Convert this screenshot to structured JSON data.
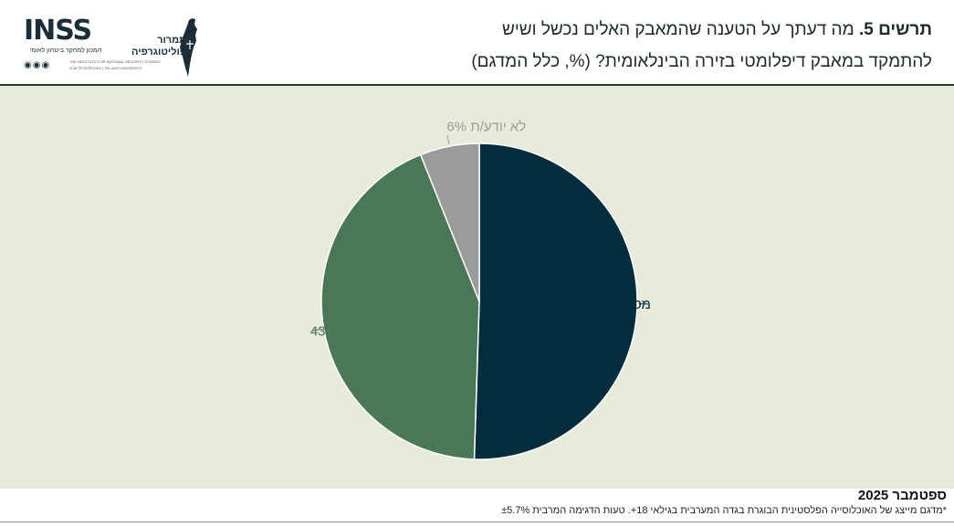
{
  "header": {
    "title_bold": "תרשים 5.",
    "title_line1_rest": " מה דעתך על הטענה שהמאבק האלים נכשל ושיש",
    "title_line2": "להתמקד במאבק דיפלומטי בזירה הבינלאומית? (%, כלל המדגם)"
  },
  "logos": {
    "inss": {
      "wordmark": "INSS",
      "subtitle": "המכון למחקר ביטחון לאומי",
      "tiny_line1": "THE INSTITUTE FOR NATIONAL SECURITY STUDIES",
      "tiny_line2": "אוניברסיטת תל אביב | TEL AVIV UNIVERSITY"
    },
    "tamrur": {
      "line1": "תמרור",
      "line2": "פוליטוגרפיה"
    }
  },
  "chart_data": {
    "type": "pie",
    "slices": [
      {
        "label": "מסכים/ה 50%",
        "value": 50,
        "color": "#012d3d"
      },
      {
        "label": "לא מסכים/ה 43%",
        "value": 43,
        "color": "#4a7755"
      },
      {
        "label": "לא יודע/ת 6%",
        "value": 6,
        "color": "#9b9b9b"
      }
    ],
    "start": "top",
    "direction": "clockwise",
    "background": "#e8eadb"
  },
  "footer": {
    "date": "ספטמבר 2025",
    "note": "*מדגם מייצג של האוכלוסייה הפלסטינית הבוגרת בגדה המערבית בגילאי 18+. טעות הדגימה המרבית ±5.7%"
  }
}
